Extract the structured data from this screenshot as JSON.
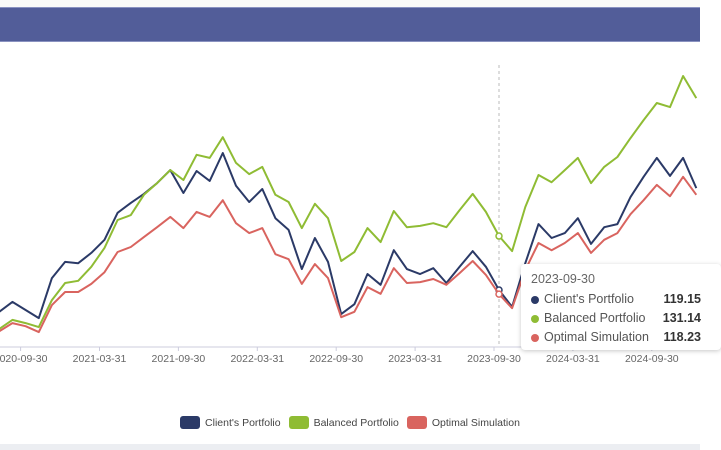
{
  "chart_data": {
    "type": "line",
    "title": "",
    "xlabel": "",
    "ylabel": "",
    "x_start": "2020-07-31",
    "x_frequency": "month-end",
    "x_tick_labels": [
      "2020-09-30",
      "2021-03-31",
      "2021-09-30",
      "2022-03-31",
      "2022-09-30",
      "2023-03-31",
      "2023-09-30",
      "2024-03-31",
      "2024-09-30"
    ],
    "grid": false,
    "legend_position": "bottom-center",
    "series": [
      {
        "name": "Client's Portfolio",
        "color": "#2b3a67",
        "values": [
          114.3,
          116.5,
          114.7,
          112.9,
          121.8,
          125.4,
          125.1,
          127.4,
          130.3,
          136.3,
          138.5,
          140.5,
          142.9,
          145.8,
          140.7,
          145.6,
          143.4,
          149.6,
          142.3,
          138.7,
          141.6,
          135.1,
          132.5,
          123.8,
          130.7,
          125.4,
          113.8,
          116.0,
          122.7,
          120.3,
          128.0,
          123.8,
          122.7,
          124.0,
          120.7,
          124.3,
          127.8,
          124.3,
          119.15,
          115.4,
          125.1,
          133.8,
          130.7,
          131.8,
          135.1,
          129.4,
          133.1,
          133.8,
          139.8,
          144.3,
          148.5,
          144.5,
          148.5,
          141.8
        ]
      },
      {
        "name": "Balanced Portfolio",
        "color": "#8fbc34",
        "values": [
          110.5,
          112.5,
          111.8,
          110.9,
          116.9,
          120.7,
          121.2,
          124.3,
          128.5,
          134.7,
          135.8,
          140.3,
          142.9,
          145.8,
          143.6,
          149.2,
          148.5,
          153.1,
          147.4,
          144.9,
          146.5,
          140.3,
          138.7,
          132.9,
          138.3,
          135.1,
          125.6,
          127.6,
          132.9,
          129.8,
          136.7,
          133.1,
          133.4,
          134.0,
          133.1,
          136.9,
          140.5,
          136.5,
          131.14,
          127.8,
          137.6,
          144.7,
          143.1,
          145.8,
          148.5,
          142.9,
          146.5,
          148.7,
          152.9,
          156.9,
          160.7,
          159.8,
          166.7,
          161.8
        ]
      },
      {
        "name": "Optimal Simulation",
        "color": "#d9645f",
        "values": [
          110.0,
          111.8,
          111.1,
          109.8,
          115.8,
          118.7,
          118.7,
          120.5,
          123.1,
          127.6,
          128.7,
          130.9,
          133.1,
          135.4,
          132.9,
          136.5,
          135.4,
          139.1,
          134.0,
          131.8,
          132.9,
          127.1,
          126.0,
          120.5,
          124.9,
          121.8,
          113.1,
          114.3,
          119.8,
          118.3,
          124.0,
          120.7,
          120.9,
          121.6,
          120.3,
          122.9,
          125.6,
          122.5,
          118.23,
          115.1,
          123.6,
          129.6,
          128.0,
          129.6,
          131.8,
          127.4,
          130.3,
          131.8,
          136.0,
          139.1,
          142.5,
          140.0,
          144.3,
          140.3
        ]
      }
    ],
    "tooltip": {
      "date": "2023-09-30",
      "index": 38,
      "rows": [
        {
          "label": "Client's Portfolio",
          "value": "119.15"
        },
        {
          "label": "Balanced Portfolio",
          "value": "131.14"
        },
        {
          "label": "Optimal Simulation",
          "value": "118.23"
        }
      ]
    }
  }
}
